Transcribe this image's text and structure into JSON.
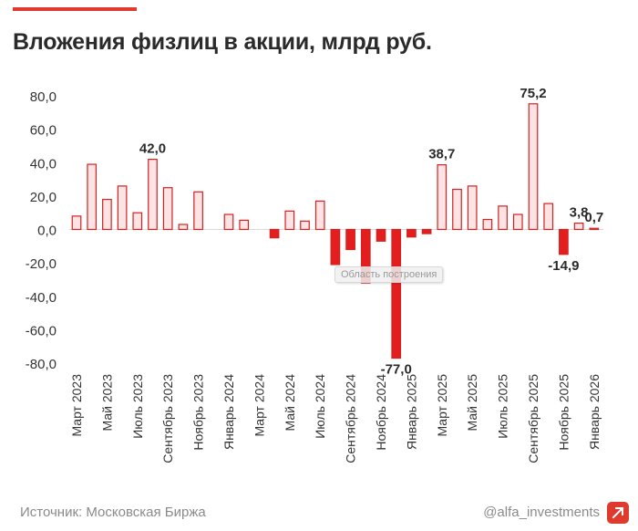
{
  "header": {
    "title": "Вложения физлиц в акции, млрд руб."
  },
  "footer": {
    "source": "Источник: Московская Биржа",
    "handle": "@alfa_investments"
  },
  "overlay": {
    "watermark": "Область построения"
  },
  "colors": {
    "accent": "#e03a2e",
    "positive_fill": "#fde3e3",
    "negative_fill": "#e41e1e",
    "bar_stroke": "#d42121",
    "grid": "#d9d9d9"
  },
  "chart_data": {
    "type": "bar",
    "title": "Вложения физлиц в акции, млрд руб.",
    "xlabel": "",
    "ylabel": "",
    "ylim": [
      -80,
      80
    ],
    "y_ticks": [
      80,
      60,
      40,
      20,
      0,
      -20,
      -40,
      -60,
      -80
    ],
    "y_tick_labels": [
      "80,0",
      "60,0",
      "40,0",
      "20,0",
      "0,0",
      "-20,0",
      "-40,0",
      "-60,0",
      "-80,0"
    ],
    "categories": [
      "2023-03",
      "2023-04",
      "2023-05",
      "2023-06",
      "2023-07",
      "2023-08",
      "2023-09",
      "2023-10",
      "2023-11",
      "2023-12",
      "2024-01",
      "2024-02",
      "2024-03",
      "2024-04",
      "2024-05",
      "2024-06",
      "2024-07",
      "2024-08",
      "2024-09",
      "2024-10",
      "2024-11",
      "2024-12",
      "2025-01",
      "2025-02",
      "2025-03",
      "2025-04",
      "2025-05",
      "2025-06",
      "2025-07",
      "2025-08",
      "2025-09",
      "2025-10",
      "2025-11",
      "2025-12",
      "2026-01"
    ],
    "values": [
      8,
      39,
      18,
      26,
      10,
      42.0,
      25,
      3,
      22.5,
      0,
      9,
      5.5,
      0,
      -5,
      11,
      5,
      17,
      -21,
      -12,
      -32,
      -7,
      -77.0,
      -4.5,
      -2.5,
      38.7,
      24,
      26,
      6,
      14,
      9,
      75.2,
      15.5,
      -14.9,
      3.8,
      0.7
    ],
    "x_tick_labels": [
      {
        "index": 0,
        "label": "Март 2023"
      },
      {
        "index": 2,
        "label": "Май 2023"
      },
      {
        "index": 4,
        "label": "Июль 2023"
      },
      {
        "index": 6,
        "label": "Сентябрь 2023"
      },
      {
        "index": 8,
        "label": "Ноябрь 2023"
      },
      {
        "index": 10,
        "label": "Январь 2024"
      },
      {
        "index": 12,
        "label": "Март 2024"
      },
      {
        "index": 14,
        "label": "Май 2024"
      },
      {
        "index": 16,
        "label": "Июль 2024"
      },
      {
        "index": 18,
        "label": "Сентябрь 2024"
      },
      {
        "index": 20,
        "label": "Ноябрь 2024"
      },
      {
        "index": 22,
        "label": "Январь 2025"
      },
      {
        "index": 24,
        "label": "Март 2025"
      },
      {
        "index": 26,
        "label": "Май 2025"
      },
      {
        "index": 28,
        "label": "Июль 2025"
      },
      {
        "index": 30,
        "label": "Сентябрь 2025"
      },
      {
        "index": 32,
        "label": "Ноябрь 2025"
      },
      {
        "index": 34,
        "label": "Январь 2026"
      }
    ],
    "annotations": [
      {
        "index": 5,
        "label": "42,0"
      },
      {
        "index": 21,
        "label": "-77,0"
      },
      {
        "index": 24,
        "label": "38,7"
      },
      {
        "index": 30,
        "label": "75,2"
      },
      {
        "index": 32,
        "label": "-14,9"
      },
      {
        "index": 33,
        "label": "3,8"
      },
      {
        "index": 34,
        "label": "0,7"
      }
    ]
  }
}
